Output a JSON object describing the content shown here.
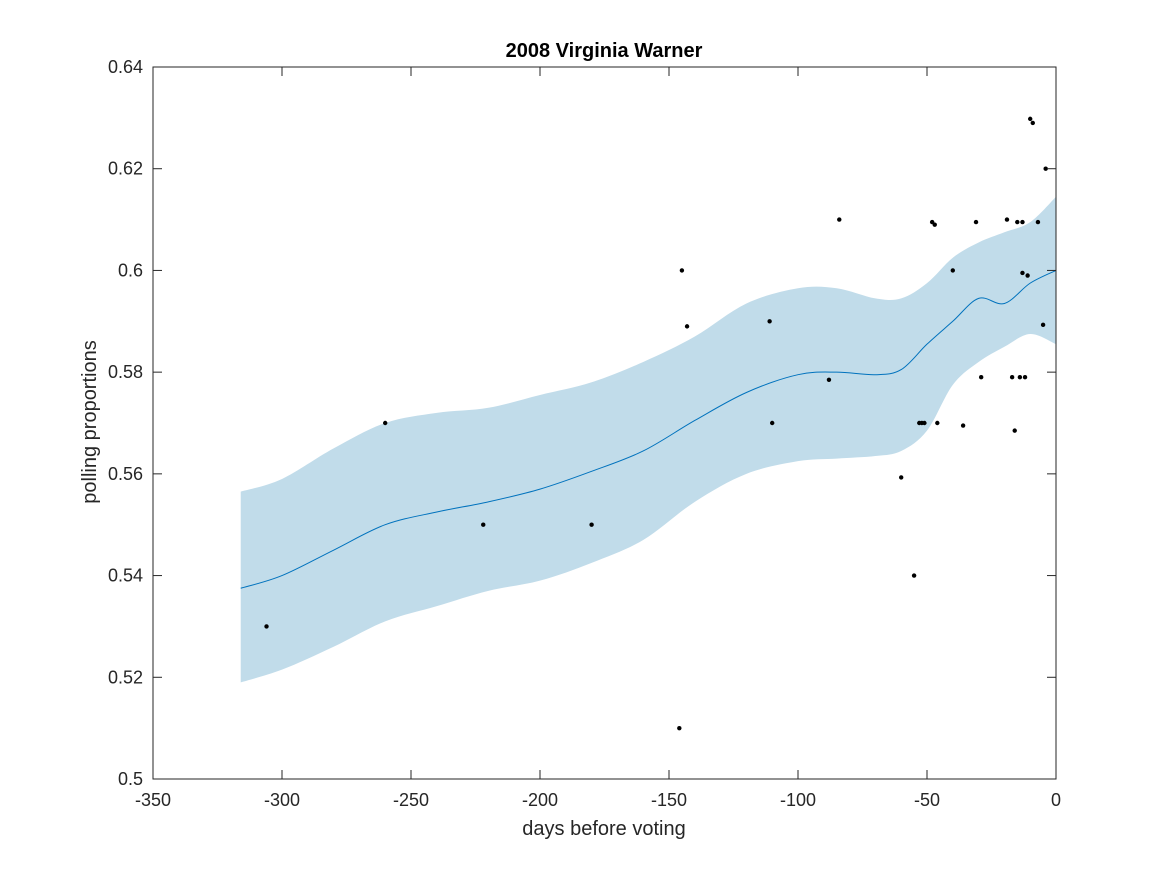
{
  "chart_data": {
    "type": "line",
    "title": "2008 Virginia Warner",
    "xlabel": "days before voting",
    "ylabel": "polling proportions",
    "xlim": [
      -350,
      0
    ],
    "ylim": [
      0.5,
      0.64
    ],
    "x_ticks": [
      -350,
      -300,
      -250,
      -200,
      -150,
      -100,
      -50,
      0
    ],
    "x_tick_labels": [
      "-350",
      "-300",
      "-250",
      "-200",
      "-150",
      "-100",
      "-50",
      "0"
    ],
    "y_ticks": [
      0.5,
      0.52,
      0.54,
      0.56,
      0.58,
      0.6,
      0.62,
      0.64
    ],
    "y_tick_labels": [
      "0.5",
      "0.52",
      "0.54",
      "0.56",
      "0.58",
      "0.6",
      "0.62",
      "0.64"
    ],
    "grid": false,
    "colors": {
      "band": "#c1dcea",
      "mean_line": "#0072bd",
      "points": "#000000",
      "axes": "#262626"
    },
    "series": [
      {
        "type": "area-band",
        "x": [
          -316,
          -300,
          -280,
          -260,
          -240,
          -220,
          -200,
          -180,
          -160,
          -140,
          -120,
          -100,
          -85,
          -70,
          -60,
          -50,
          -40,
          -30,
          -20,
          -10,
          0
        ],
        "upper": [
          0.5565,
          0.559,
          0.565,
          0.57,
          0.572,
          0.573,
          0.5755,
          0.578,
          0.582,
          0.587,
          0.5935,
          0.5965,
          0.5965,
          0.5945,
          0.5945,
          0.5975,
          0.6025,
          0.6055,
          0.6075,
          0.6095,
          0.6145
        ],
        "lower": [
          0.519,
          0.5215,
          0.526,
          0.531,
          0.534,
          0.537,
          0.539,
          0.5425,
          0.547,
          0.5545,
          0.56,
          0.5625,
          0.563,
          0.5635,
          0.5645,
          0.5685,
          0.5775,
          0.582,
          0.585,
          0.5875,
          0.5855
        ]
      },
      {
        "type": "line",
        "x": [
          -316,
          -300,
          -280,
          -260,
          -240,
          -220,
          -200,
          -180,
          -160,
          -140,
          -120,
          -100,
          -85,
          -70,
          -60,
          -50,
          -40,
          -30,
          -20,
          -10,
          0
        ],
        "y": [
          0.5375,
          0.54,
          0.545,
          0.55,
          0.5525,
          0.5545,
          0.557,
          0.5605,
          0.5645,
          0.5705,
          0.576,
          0.5795,
          0.58,
          0.5795,
          0.5805,
          0.5855,
          0.59,
          0.5945,
          0.5935,
          0.5975,
          0.6
        ]
      },
      {
        "type": "scatter",
        "x": [
          -306,
          -260,
          -222,
          -180,
          -146,
          -145,
          -143,
          -111,
          -110,
          -88,
          -84,
          -60,
          -55,
          -53,
          -52,
          -51,
          -48,
          -47,
          -46,
          -40,
          -36,
          -31,
          -29,
          -19,
          -17,
          -16,
          -15,
          -14,
          -13,
          -13,
          -12,
          -11,
          -10,
          -9,
          -7,
          -5,
          -4
        ],
        "y": [
          0.53,
          0.57,
          0.55,
          0.55,
          0.51,
          0.6,
          0.589,
          0.59,
          0.57,
          0.5785,
          0.61,
          0.5593,
          0.54,
          0.57,
          0.57,
          0.57,
          0.6095,
          0.609,
          0.57,
          0.6,
          0.5695,
          0.6095,
          0.579,
          0.61,
          0.579,
          0.5685,
          0.6095,
          0.579,
          0.5995,
          0.6095,
          0.579,
          0.599,
          0.6298,
          0.629,
          0.6095,
          0.5893,
          0.62
        ]
      }
    ]
  }
}
